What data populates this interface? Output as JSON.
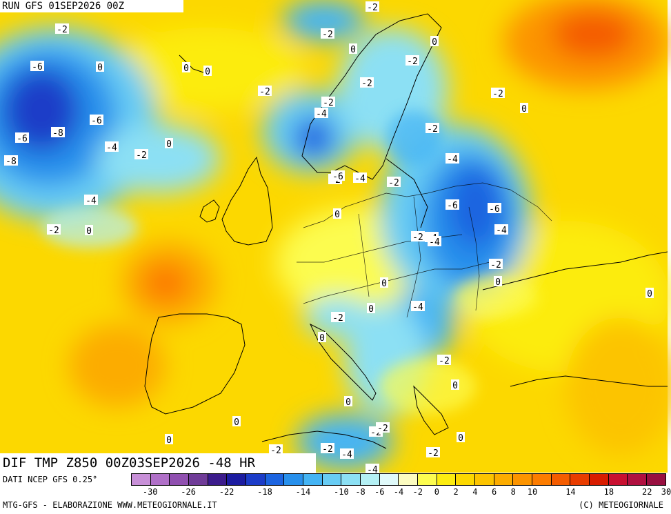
{
  "header": {
    "run": "RUN GFS 01SEP2026 00Z"
  },
  "footer": {
    "title": "DIF TMP Z850 00Z03SEP2026 -48 HR",
    "source": "DATI NCEP GFS 0.25°",
    "credits": "MTG-GFS - ELABORAZIONE WWW.METEOGIORNALE.IT",
    "copyright": "(C) METEOGIORNALE"
  },
  "legend": {
    "colors": [
      "#c890d8",
      "#b070c8",
      "#9050b0",
      "#703c98",
      "#3c1c8c",
      "#1c1ca0",
      "#1c3cc8",
      "#1c64e0",
      "#2890ec",
      "#44b4f4",
      "#68ccf4",
      "#8ce0f4",
      "#b4f0f4",
      "#e0fafa",
      "#fcfcc0",
      "#fcfc50",
      "#fcec10",
      "#fcd800",
      "#fcc400",
      "#fcac00",
      "#fc9400",
      "#fc7c00",
      "#f45c00",
      "#e83c00",
      "#d81c00",
      "#c81030",
      "#b01040",
      "#981040"
    ],
    "ticks": [
      "-30",
      "-26",
      "-22",
      "-18",
      "-14",
      "-10",
      "-8",
      "-6",
      "-4",
      "-2",
      "0",
      "2",
      "4",
      "6",
      "8",
      "10",
      "14",
      "18",
      "22",
      "30"
    ]
  },
  "map_labels": [
    {
      "id": "l1",
      "text": "-2"
    },
    {
      "id": "l2",
      "text": "-2"
    },
    {
      "id": "l3",
      "text": "-2"
    },
    {
      "id": "l4",
      "text": "-6"
    },
    {
      "id": "l5",
      "text": "0"
    },
    {
      "id": "l6",
      "text": "0"
    },
    {
      "id": "l7",
      "text": "0"
    },
    {
      "id": "l8",
      "text": "0"
    },
    {
      "id": "l9",
      "text": "-2"
    },
    {
      "id": "l10",
      "text": "0"
    },
    {
      "id": "l11",
      "text": "-2"
    },
    {
      "id": "l12",
      "text": "-6"
    },
    {
      "id": "l13",
      "text": "-8"
    },
    {
      "id": "l14",
      "text": "-6"
    },
    {
      "id": "l15",
      "text": "-4"
    },
    {
      "id": "l16",
      "text": "-2"
    },
    {
      "id": "l17",
      "text": "0"
    },
    {
      "id": "l18",
      "text": "-8"
    },
    {
      "id": "l19",
      "text": "-4"
    },
    {
      "id": "l20",
      "text": "-2"
    },
    {
      "id": "l21",
      "text": "0"
    },
    {
      "id": "l22",
      "text": "-2"
    },
    {
      "id": "l23",
      "text": "-4"
    },
    {
      "id": "l24",
      "text": "-2"
    },
    {
      "id": "l25",
      "text": "0"
    },
    {
      "id": "l26",
      "text": "-2"
    },
    {
      "id": "l27",
      "text": "-2"
    },
    {
      "id": "l28",
      "text": "-4"
    },
    {
      "id": "l29",
      "text": "-2"
    },
    {
      "id": "l30",
      "text": "-4"
    },
    {
      "id": "l31",
      "text": "-6"
    },
    {
      "id": "l32",
      "text": "-6"
    },
    {
      "id": "l33",
      "text": "-4"
    },
    {
      "id": "l34",
      "text": "-2"
    },
    {
      "id": "l35",
      "text": "-4"
    },
    {
      "id": "l36",
      "text": "0"
    },
    {
      "id": "l37",
      "text": "-2"
    },
    {
      "id": "l38",
      "text": "0"
    },
    {
      "id": "l39",
      "text": "0"
    },
    {
      "id": "l40",
      "text": "0"
    },
    {
      "id": "l41",
      "text": "-4"
    },
    {
      "id": "l42",
      "text": "-2"
    },
    {
      "id": "l43",
      "text": "0"
    },
    {
      "id": "l44",
      "text": "-2"
    },
    {
      "id": "l45",
      "text": "0"
    },
    {
      "id": "l46",
      "text": "0"
    },
    {
      "id": "l47",
      "text": "0"
    },
    {
      "id": "l48",
      "text": "0"
    },
    {
      "id": "l49",
      "text": "-2"
    },
    {
      "id": "l50",
      "text": "0"
    },
    {
      "id": "l51",
      "text": "0"
    },
    {
      "id": "l52",
      "text": "-2"
    },
    {
      "id": "l53",
      "text": "-2"
    },
    {
      "id": "l54",
      "text": "-2"
    },
    {
      "id": "l55",
      "text": "-4"
    },
    {
      "id": "l56",
      "text": "-4"
    },
    {
      "id": "l57",
      "text": "-2"
    },
    {
      "id": "l58",
      "text": "-2"
    },
    {
      "id": "l59",
      "text": "-4"
    },
    {
      "id": "l60",
      "text": "-6"
    }
  ]
}
